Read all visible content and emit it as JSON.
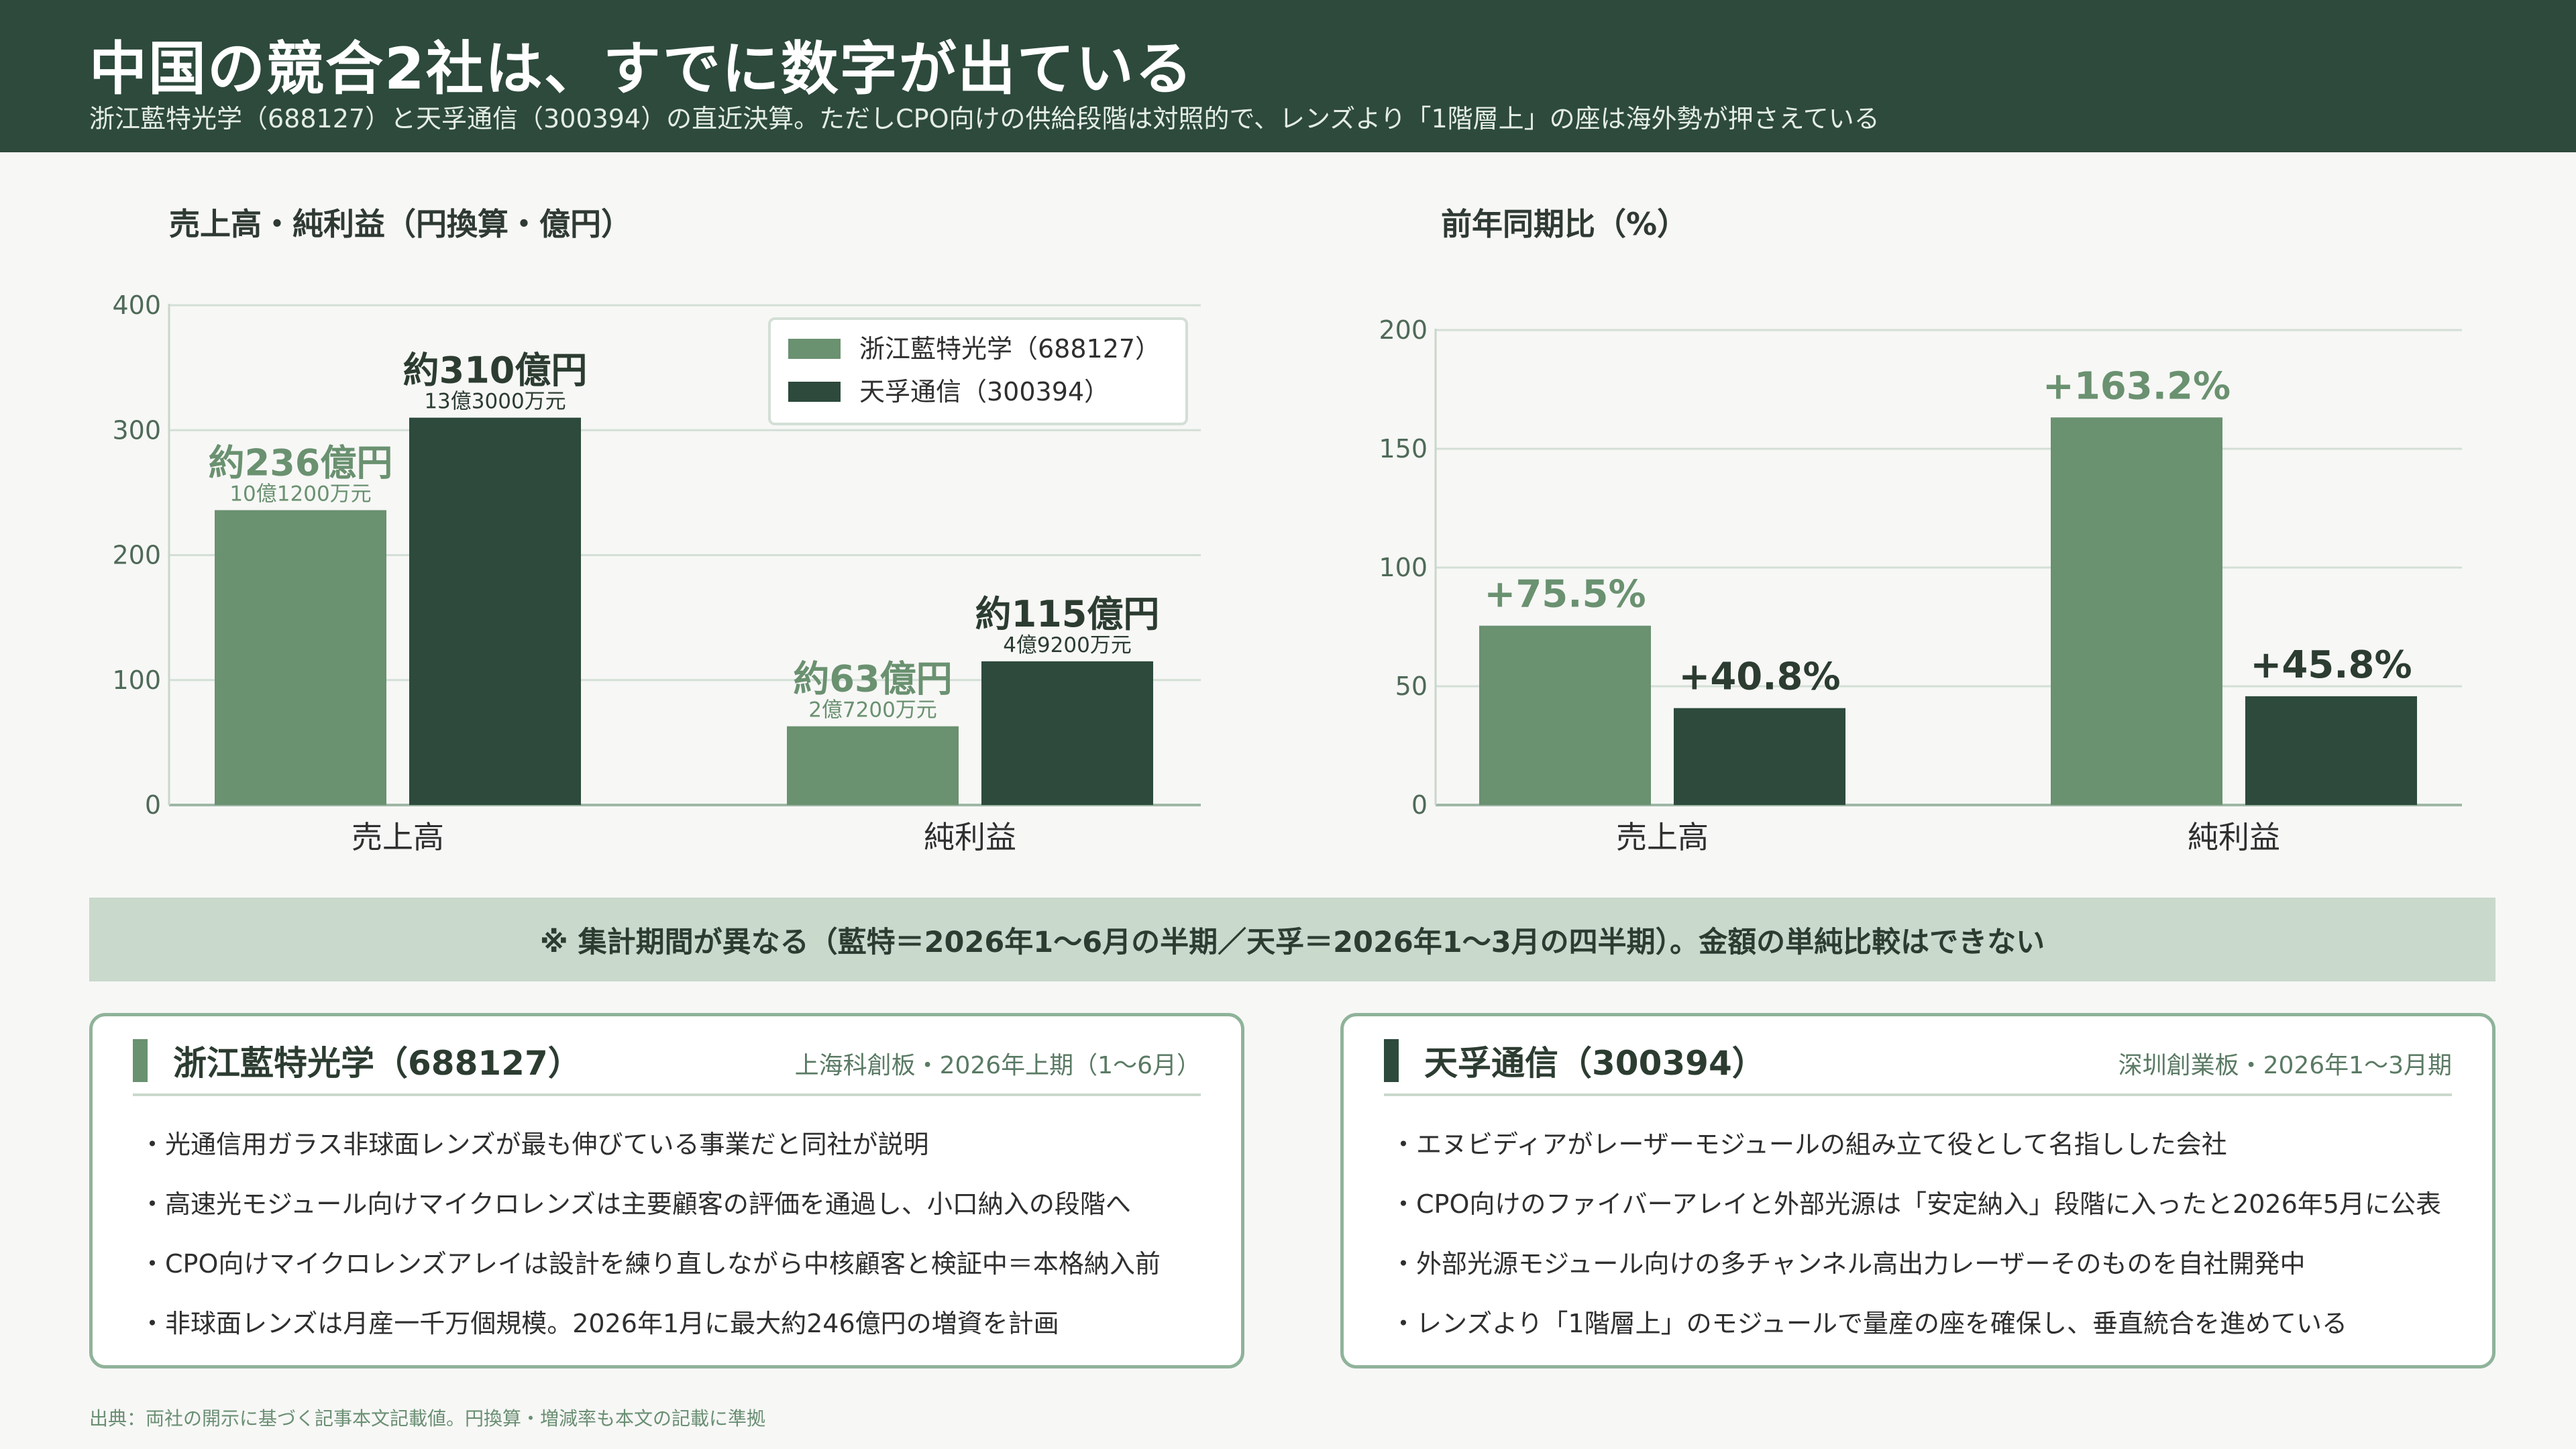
{
  "header": {
    "title": "中国の競合2社は、すでに数字が出ている",
    "subtitle": "浙江藍特光学（688127）と天孚通信（300394）の直近決算。ただしCPO向けの供給段階は対照的で、レンズより「1階層上」の座は海外勢が押さえている"
  },
  "colors": {
    "header_bg": "#2d4a3c",
    "series_light": "#6a9170",
    "series_dark": "#2d4a3c",
    "note_band": "#c9d9cc",
    "card_border": "#8fb39a"
  },
  "chart_data": [
    {
      "type": "bar",
      "title": "売上高・純利益（円換算・億円）",
      "categories": [
        "売上高",
        "純利益"
      ],
      "ylim": [
        0,
        400
      ],
      "yticks": [
        0,
        100,
        200,
        300,
        400
      ],
      "grid": true,
      "legend": "top-right",
      "series": [
        {
          "name": "浙江藍特光学（688127）",
          "values": [
            236,
            63
          ],
          "labels": [
            "約236億円",
            "約63億円"
          ],
          "sublabels": [
            "10億1200万元",
            "2億7200万元"
          ]
        },
        {
          "name": "天孚通信（300394）",
          "values": [
            310,
            115
          ],
          "labels": [
            "約310億円",
            "約115億円"
          ],
          "sublabels": [
            "13億3000万元",
            "4億9200万元"
          ]
        }
      ]
    },
    {
      "type": "bar",
      "title": "前年同期比（%）",
      "categories": [
        "売上高",
        "純利益"
      ],
      "ylim": [
        0,
        200
      ],
      "yticks": [
        0,
        50,
        100,
        150,
        200
      ],
      "grid": true,
      "series": [
        {
          "values": [
            75.5,
            163.2
          ],
          "labels": [
            "+75.5%",
            "+163.2%"
          ]
        },
        {
          "values": [
            40.8,
            45.8
          ],
          "labels": [
            "+40.8%",
            "+45.8%"
          ]
        }
      ]
    }
  ],
  "note": "※ 集計期間が異なる（藍特＝2026年1〜6月の半期／天孚＝2026年1〜3月の四半期）。金額の単純比較はできない",
  "cards": [
    {
      "name": "浙江藍特光学（688127）",
      "meta": "上海科創板・2026年上期（1〜6月）",
      "items": [
        "・光通信用ガラス非球面レンズが最も伸びている事業だと同社が説明",
        "・高速光モジュール向けマイクロレンズは主要顧客の評価を通過し、小口納入の段階へ",
        "・CPO向けマイクロレンズアレイは設計を練り直しながら中核顧客と検証中＝本格納入前",
        "・非球面レンズは月産一千万個規模。2026年1月に最大約246億円の増資を計画"
      ]
    },
    {
      "name": "天孚通信（300394）",
      "meta": "深圳創業板・2026年1〜3月期",
      "items": [
        "・エヌビディアがレーザーモジュールの組み立て役として名指しした会社",
        "・CPO向けのファイバーアレイと外部光源は「安定納入」段階に入ったと2026年5月に公表",
        "・外部光源モジュール向けの多チャンネル高出力レーザーそのものを自社開発中",
        "・レンズより「1階層上」のモジュールで量産の座を確保し、垂直統合を進めている"
      ]
    }
  ],
  "source": "出典：両社の開示に基づく記事本文記載値。円換算・増減率も本文の記載に準拠"
}
